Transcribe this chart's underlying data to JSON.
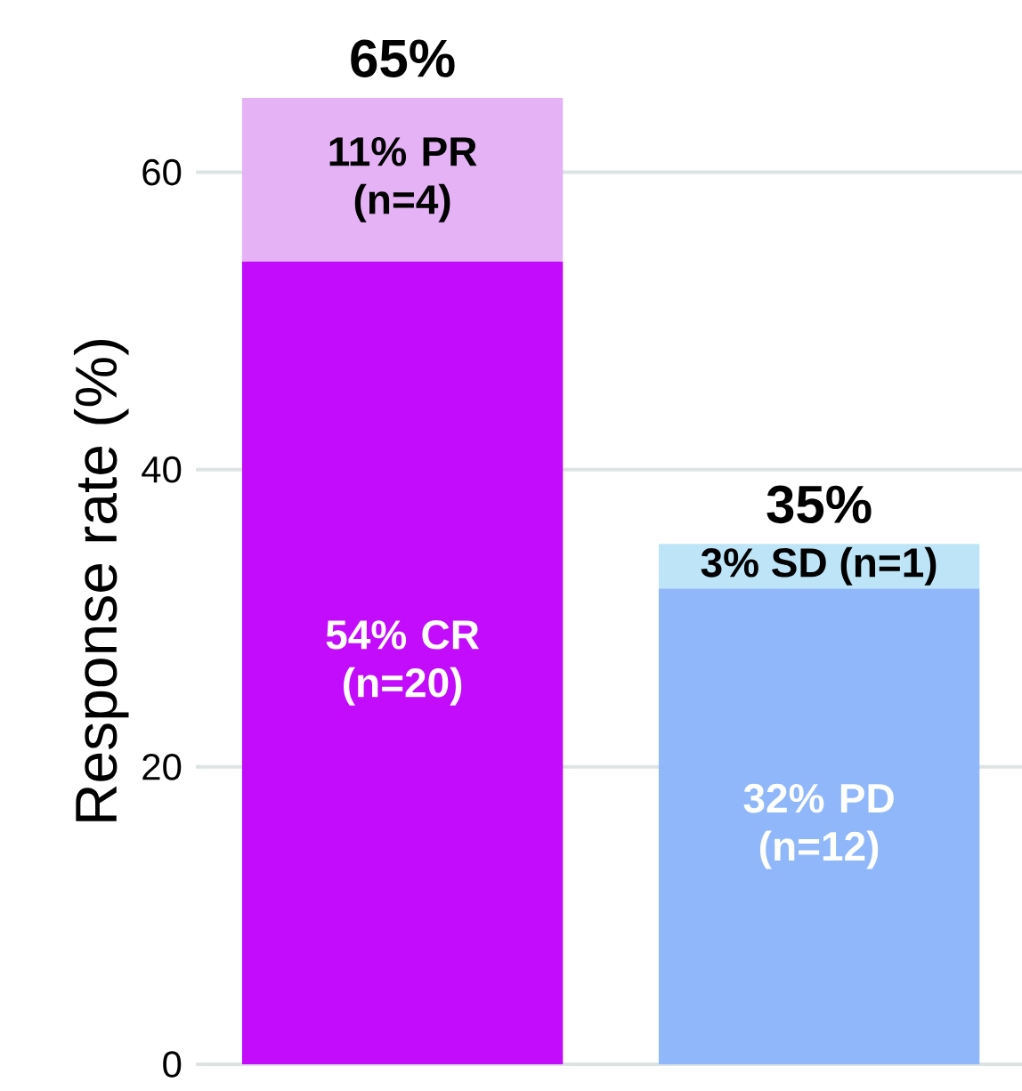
{
  "chart_data": {
    "type": "bar",
    "stacked": true,
    "ylabel": "Response rate (%)",
    "categories": [
      null,
      null
    ],
    "series": [
      {
        "colors": [
          "#c20cfb",
          "#8fb7fa"
        ],
        "values": [
          54,
          32
        ],
        "value_labels": [
          "54% CR (n=20)",
          "32% PD (n=12)"
        ]
      },
      {
        "colors": [
          "#e5b2f5",
          "#bde5f7"
        ],
        "values": [
          11,
          3
        ],
        "value_labels": [
          "11% PR (n=4)",
          "3% SD (n=1)"
        ]
      }
    ],
    "totals": [
      "65%",
      "35%"
    ],
    "ylim": [
      0,
      65
    ],
    "yticks": [
      0,
      20,
      40,
      60
    ],
    "grid": "y"
  }
}
